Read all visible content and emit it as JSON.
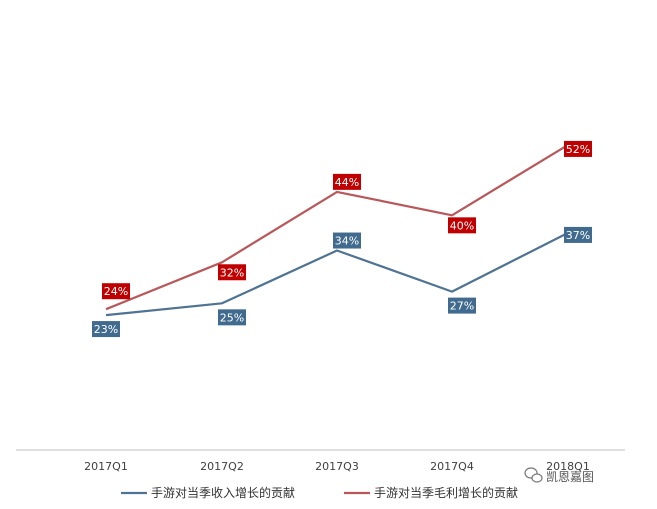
{
  "chart_data": {
    "type": "line",
    "categories": [
      "2017Q1",
      "2017Q2",
      "2017Q3",
      "2017Q4",
      "2018Q1"
    ],
    "series": [
      {
        "name": "手游对当季收入增长的贡献",
        "values": [
          23,
          25,
          34,
          27,
          37
        ],
        "labels": [
          "23%",
          "25%",
          "34%",
          "27%",
          "37%"
        ],
        "color": "#4f7393",
        "label_bg": "#406b8f"
      },
      {
        "name": "手游对当季毛利增长的贡献",
        "values": [
          24,
          32,
          44,
          40,
          52
        ],
        "labels": [
          "24%",
          "32%",
          "44%",
          "40%",
          "52%"
        ],
        "color": "#b8585a",
        "label_bg": "#c00000"
      }
    ],
    "ylim": [
      0,
      60
    ],
    "grid": false,
    "legend": "bottom",
    "title": "",
    "xlabel": "",
    "ylabel": ""
  },
  "watermark": {
    "text": "凯恩嘉图",
    "icon": "wechat-icon"
  }
}
